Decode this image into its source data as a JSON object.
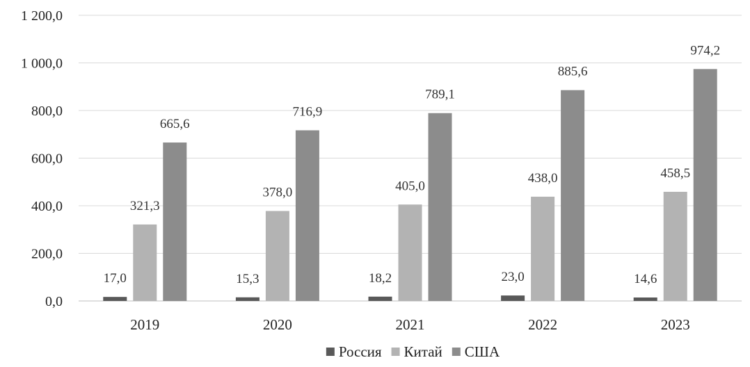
{
  "chart_data": {
    "type": "bar",
    "categories": [
      "2019",
      "2020",
      "2021",
      "2022",
      "2023"
    ],
    "series": [
      {
        "name": "Россия",
        "values": [
          17.0,
          15.3,
          18.2,
          23.0,
          14.6
        ],
        "labels": [
          "17,0",
          "15,3",
          "18,2",
          "23,0",
          "14,6"
        ],
        "color": "#595959"
      },
      {
        "name": "Китай",
        "values": [
          321.3,
          378.0,
          405.0,
          438.0,
          458.5
        ],
        "labels": [
          "321,3",
          "378,0",
          "405,0",
          "438,0",
          "458,5"
        ],
        "color": "#b3b3b3"
      },
      {
        "name": "США",
        "values": [
          665.6,
          716.9,
          789.1,
          885.6,
          974.2
        ],
        "labels": [
          "665,6",
          "716,9",
          "789,1",
          "885,6",
          "974,2"
        ],
        "color": "#8c8c8c"
      }
    ],
    "ylim": [
      0,
      1200
    ],
    "yticks": [
      0,
      200,
      400,
      600,
      800,
      1000,
      1200
    ],
    "ytick_labels": [
      "0,0",
      "200,0",
      "400,0",
      "600,0",
      "800,0",
      "1 000,0",
      "1 200,0"
    ],
    "grid": true,
    "legend_position": "bottom",
    "colors": {
      "grid": "#d9d9d9",
      "axis": "#bfbfbf",
      "text": "#222222"
    }
  }
}
